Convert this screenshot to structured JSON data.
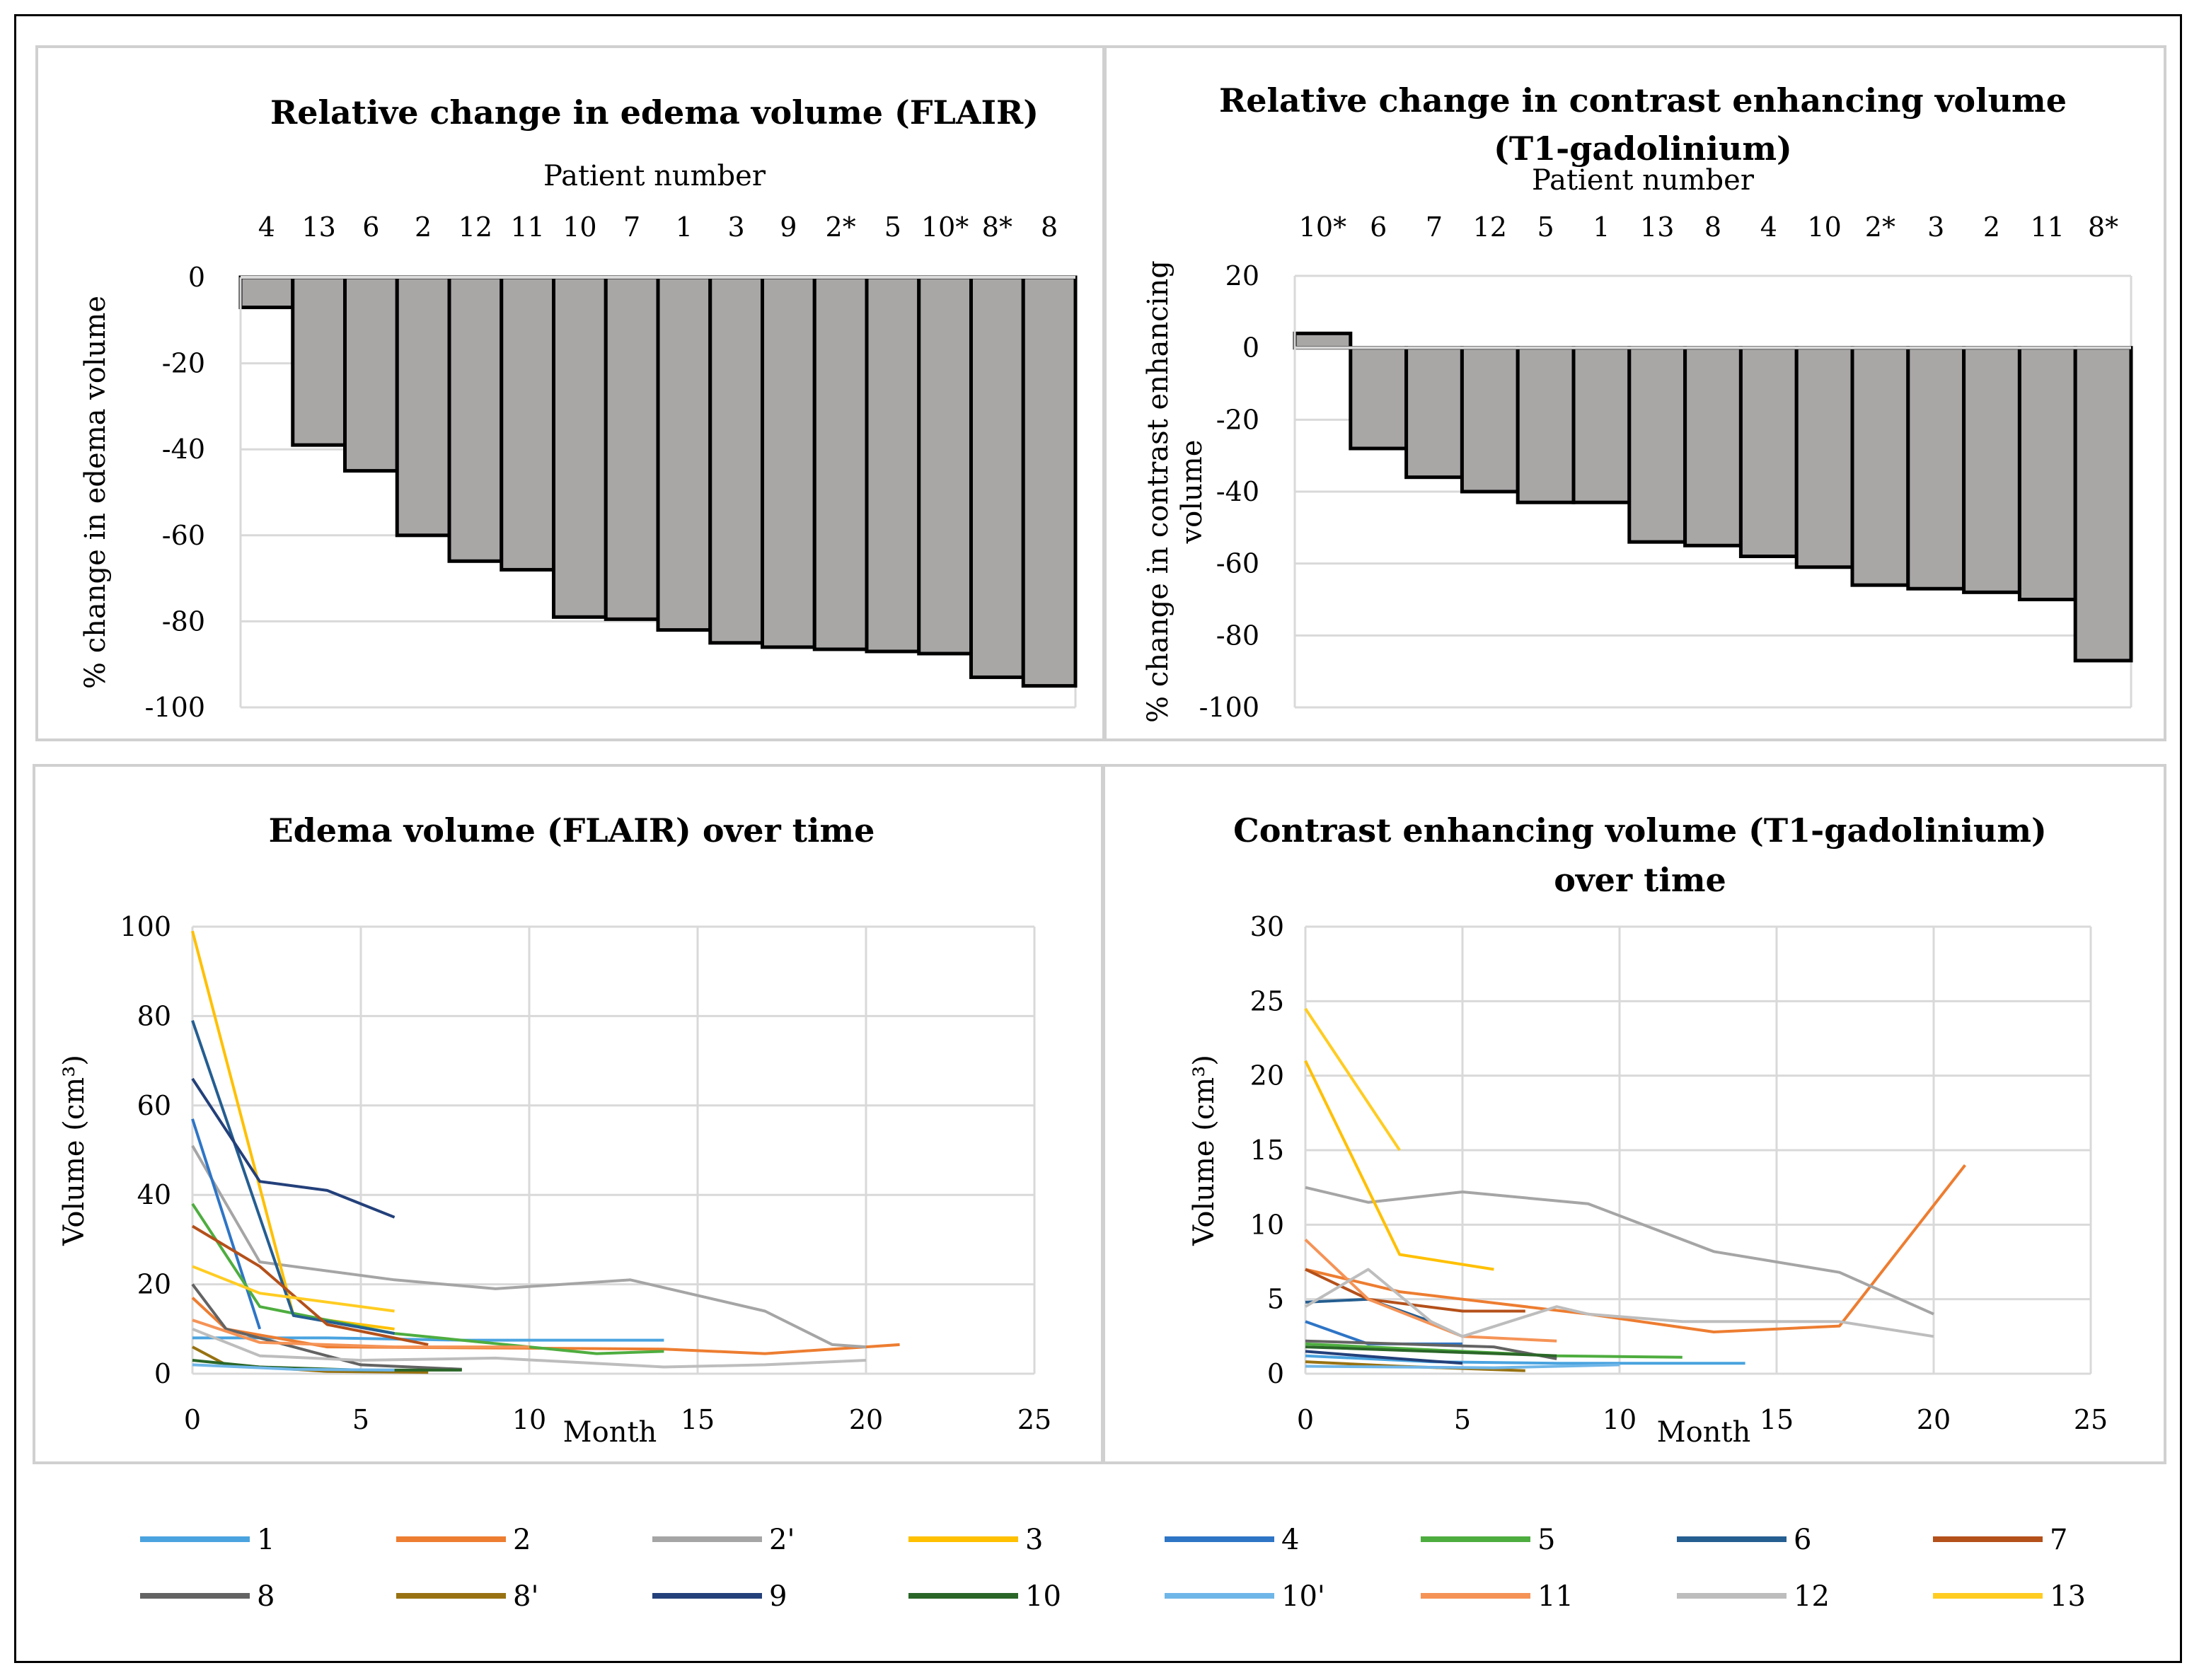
{
  "colors": {
    "bar_fill": "#a9a6a6",
    "bar_stroke": "#000000",
    "grid": "#d9d9d9",
    "panel_border": "#d0d0d0",
    "text": "#000000"
  },
  "series_colors": {
    "1": "#4aa3df",
    "2": "#ed7d31",
    "2'": "#a5a5a5",
    "3": "#ffc000",
    "4": "#2e75c6",
    "5": "#4ead3f",
    "6": "#255e91",
    "7": "#b4501a",
    "8": "#636363",
    "8'": "#987212",
    "9": "#23407a",
    "10": "#2a6628",
    "10'": "#6fb6e8",
    "11": "#f59356",
    "12": "#bdbdbd",
    "13": "#ffcc22"
  },
  "legend": {
    "items": [
      "1",
      "2",
      "2'",
      "3",
      "4",
      "5",
      "6",
      "7",
      "8",
      "8'",
      "9",
      "10",
      "10'",
      "11",
      "12",
      "13"
    ]
  },
  "chart_data": [
    {
      "id": "edema_change",
      "type": "bar",
      "title": "Relative change in edema volume (FLAIR)",
      "xlabel": "Patient number",
      "ylabel": "% change in edema volume",
      "categories": [
        "4",
        "13",
        "6",
        "2",
        "12",
        "11",
        "10",
        "7",
        "1",
        "3",
        "9",
        "2*",
        "5",
        "10*",
        "8*",
        "8"
      ],
      "values": [
        -7,
        -39,
        -45,
        -60,
        -66,
        -68,
        -79,
        -79.5,
        -82,
        -85,
        -86,
        -86.5,
        -87,
        -87.5,
        -93,
        -95
      ],
      "ylim": [
        -100,
        0
      ],
      "yticks": [
        0,
        -20,
        -40,
        -60,
        -80,
        -100
      ]
    },
    {
      "id": "contrast_change",
      "type": "bar",
      "title_lines": [
        "Relative change in contrast enhancing volume",
        "(T1-gadolinium)"
      ],
      "xlabel": "Patient number",
      "ylabel_lines": [
        "% change in contrast enhancing",
        "volume"
      ],
      "categories": [
        "10*",
        "6",
        "7",
        "12",
        "5",
        "1",
        "13",
        "8",
        "4",
        "10",
        "2*",
        "3",
        "2",
        "11",
        "8*"
      ],
      "values": [
        4,
        -28,
        -36,
        -40,
        -43,
        -43,
        -54,
        -55,
        -58,
        -61,
        -66,
        -67,
        -68,
        -70,
        -87
      ],
      "ylim": [
        -100,
        20
      ],
      "yticks": [
        20,
        0,
        -20,
        -40,
        -60,
        -80,
        -100
      ]
    },
    {
      "id": "edema_time",
      "type": "line",
      "title": "Edema volume (FLAIR) over time",
      "xlabel": "Month",
      "ylabel": "Volume (cm³)",
      "xlim": [
        0,
        25
      ],
      "ylim": [
        0,
        100
      ],
      "xticks": [
        0,
        5,
        10,
        15,
        20,
        25
      ],
      "yticks": [
        0,
        20,
        40,
        60,
        80,
        100
      ],
      "series": [
        {
          "name": "1",
          "points": [
            [
              0,
              8
            ],
            [
              4,
              8
            ],
            [
              8,
              7.5
            ],
            [
              14,
              7.5
            ]
          ]
        },
        {
          "name": "2",
          "points": [
            [
              0,
              17
            ],
            [
              1,
              10
            ],
            [
              4,
              6
            ],
            [
              14,
              5.5
            ],
            [
              17,
              4.5
            ],
            [
              20,
              6
            ],
            [
              21,
              6.5
            ]
          ]
        },
        {
          "name": "2'",
          "points": [
            [
              0,
              51
            ],
            [
              2,
              25
            ],
            [
              6,
              21
            ],
            [
              9,
              19
            ],
            [
              13,
              21
            ],
            [
              17,
              14
            ],
            [
              19,
              6.5
            ],
            [
              20,
              6
            ]
          ]
        },
        {
          "name": "3",
          "points": [
            [
              0,
              99
            ],
            [
              3,
              13
            ],
            [
              6,
              10
            ]
          ]
        },
        {
          "name": "4",
          "points": [
            [
              0,
              57
            ],
            [
              2,
              10
            ]
          ]
        },
        {
          "name": "5",
          "points": [
            [
              0,
              38
            ],
            [
              2,
              15
            ],
            [
              6,
              9
            ],
            [
              12,
              4.5
            ],
            [
              14,
              5
            ]
          ]
        },
        {
          "name": "6",
          "points": [
            [
              0,
              79
            ],
            [
              3,
              13
            ],
            [
              6,
              9
            ]
          ]
        },
        {
          "name": "7",
          "points": [
            [
              0,
              33
            ],
            [
              2,
              24
            ],
            [
              4,
              11
            ],
            [
              7,
              6.5
            ]
          ]
        },
        {
          "name": "8",
          "points": [
            [
              0,
              20
            ],
            [
              1,
              10
            ],
            [
              3,
              6
            ],
            [
              5,
              2
            ],
            [
              8,
              1
            ]
          ]
        },
        {
          "name": "8'",
          "points": [
            [
              0,
              6
            ],
            [
              1,
              2
            ],
            [
              4,
              0.5
            ],
            [
              7,
              0.3
            ]
          ]
        },
        {
          "name": "9",
          "points": [
            [
              0,
              66
            ],
            [
              2,
              43
            ],
            [
              4,
              41
            ],
            [
              6,
              35
            ]
          ]
        },
        {
          "name": "10",
          "points": [
            [
              0,
              3
            ],
            [
              2,
              1.5
            ],
            [
              5,
              0.8
            ],
            [
              8,
              0.8
            ]
          ]
        },
        {
          "name": "10'",
          "points": [
            [
              0,
              2
            ],
            [
              3,
              1
            ],
            [
              6,
              0.8
            ]
          ]
        },
        {
          "name": "11",
          "points": [
            [
              0,
              12
            ],
            [
              2,
              7
            ],
            [
              6,
              6
            ],
            [
              10,
              6
            ]
          ]
        },
        {
          "name": "12",
          "points": [
            [
              0,
              10
            ],
            [
              2,
              4
            ],
            [
              5,
              3
            ],
            [
              9,
              3.5
            ],
            [
              14,
              1.5
            ],
            [
              17,
              2
            ],
            [
              20,
              3
            ]
          ]
        },
        {
          "name": "13",
          "points": [
            [
              0,
              24
            ],
            [
              2,
              18
            ],
            [
              6,
              14
            ]
          ]
        }
      ]
    },
    {
      "id": "contrast_time",
      "type": "line",
      "title_lines": [
        "Contrast enhancing volume (T1-gadolinium)",
        "over time"
      ],
      "xlabel": "Month",
      "ylabel": "Volume (cm³)",
      "xlim": [
        0,
        25
      ],
      "ylim": [
        0,
        30
      ],
      "xticks": [
        0,
        5,
        10,
        15,
        20,
        25
      ],
      "yticks": [
        0,
        5,
        10,
        15,
        20,
        25,
        30
      ],
      "series": [
        {
          "name": "1",
          "points": [
            [
              0,
              1.2
            ],
            [
              4,
              0.8
            ],
            [
              8,
              0.7
            ],
            [
              14,
              0.7
            ]
          ]
        },
        {
          "name": "2",
          "points": [
            [
              0,
              7
            ],
            [
              3,
              5.5
            ],
            [
              5,
              5
            ],
            [
              9,
              4
            ],
            [
              13,
              2.8
            ],
            [
              17,
              3.2
            ],
            [
              21,
              14
            ]
          ]
        },
        {
          "name": "2'",
          "points": [
            [
              0,
              12.5
            ],
            [
              2,
              11.5
            ],
            [
              5,
              12.2
            ],
            [
              9,
              11.4
            ],
            [
              13,
              8.2
            ],
            [
              17,
              6.8
            ],
            [
              20,
              4
            ]
          ]
        },
        {
          "name": "3",
          "points": [
            [
              0,
              21
            ],
            [
              3,
              8
            ],
            [
              6,
              7
            ]
          ]
        },
        {
          "name": "4",
          "points": [
            [
              0,
              3.5
            ],
            [
              2,
              2
            ],
            [
              5,
              2
            ]
          ]
        },
        {
          "name": "5",
          "points": [
            [
              0,
              2
            ],
            [
              5,
              1.5
            ],
            [
              8,
              1.2
            ],
            [
              12,
              1.1
            ]
          ]
        },
        {
          "name": "6",
          "points": [
            [
              0,
              4.8
            ],
            [
              2,
              5
            ],
            [
              4,
              3.5
            ]
          ]
        },
        {
          "name": "7",
          "points": [
            [
              0,
              7
            ],
            [
              2,
              5
            ],
            [
              5,
              4.2
            ],
            [
              7,
              4.2
            ]
          ]
        },
        {
          "name": "8",
          "points": [
            [
              0,
              2.2
            ],
            [
              3,
              2
            ],
            [
              6,
              1.8
            ],
            [
              8,
              1
            ]
          ]
        },
        {
          "name": "8'",
          "points": [
            [
              0,
              0.8
            ],
            [
              3,
              0.5
            ],
            [
              7,
              0.2
            ]
          ]
        },
        {
          "name": "9",
          "points": [
            [
              0,
              1.5
            ],
            [
              3,
              1
            ],
            [
              5,
              0.7
            ]
          ]
        },
        {
          "name": "10",
          "points": [
            [
              0,
              1.8
            ],
            [
              4,
              1.5
            ],
            [
              8,
              1.2
            ]
          ]
        },
        {
          "name": "10'",
          "points": [
            [
              0,
              0.5
            ],
            [
              6,
              0.4
            ],
            [
              10,
              0.6
            ]
          ]
        },
        {
          "name": "11",
          "points": [
            [
              0,
              9
            ],
            [
              2,
              5
            ],
            [
              5,
              2.5
            ],
            [
              8,
              2.2
            ]
          ]
        },
        {
          "name": "12",
          "points": [
            [
              0,
              4.5
            ],
            [
              2,
              7
            ],
            [
              4,
              3.5
            ],
            [
              5,
              2.5
            ],
            [
              8,
              4.5
            ],
            [
              9,
              4
            ],
            [
              12,
              3.5
            ],
            [
              17,
              3.5
            ],
            [
              20,
              2.5
            ]
          ]
        },
        {
          "name": "13",
          "points": [
            [
              0,
              24.5
            ],
            [
              3,
              15
            ]
          ]
        }
      ]
    }
  ]
}
